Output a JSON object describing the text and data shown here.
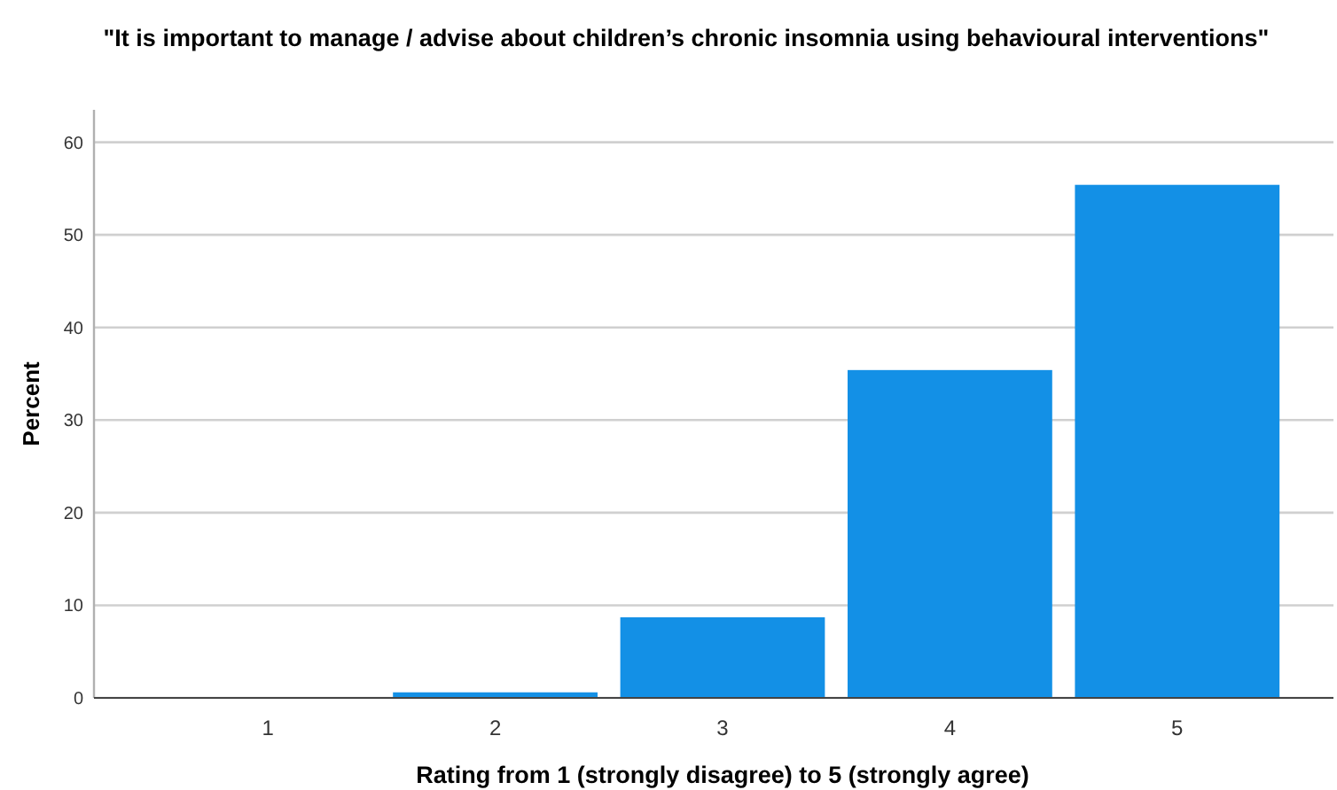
{
  "chart_data": {
    "type": "bar",
    "title": "\"It is important to manage / advise about children’s chronic insomnia using behavioural interventions\"",
    "xlabel": "Rating from 1 (strongly disagree) to 5 (strongly agree)",
    "ylabel": "Percent",
    "categories": [
      "1",
      "2",
      "3",
      "4",
      "5"
    ],
    "values": [
      0,
      0.6,
      8.7,
      35.4,
      55.4
    ],
    "color": "#1390e6",
    "ylim": [
      0,
      63.5
    ],
    "yticks": [
      0,
      10,
      20,
      30,
      40,
      50,
      60
    ],
    "grid": "y"
  }
}
